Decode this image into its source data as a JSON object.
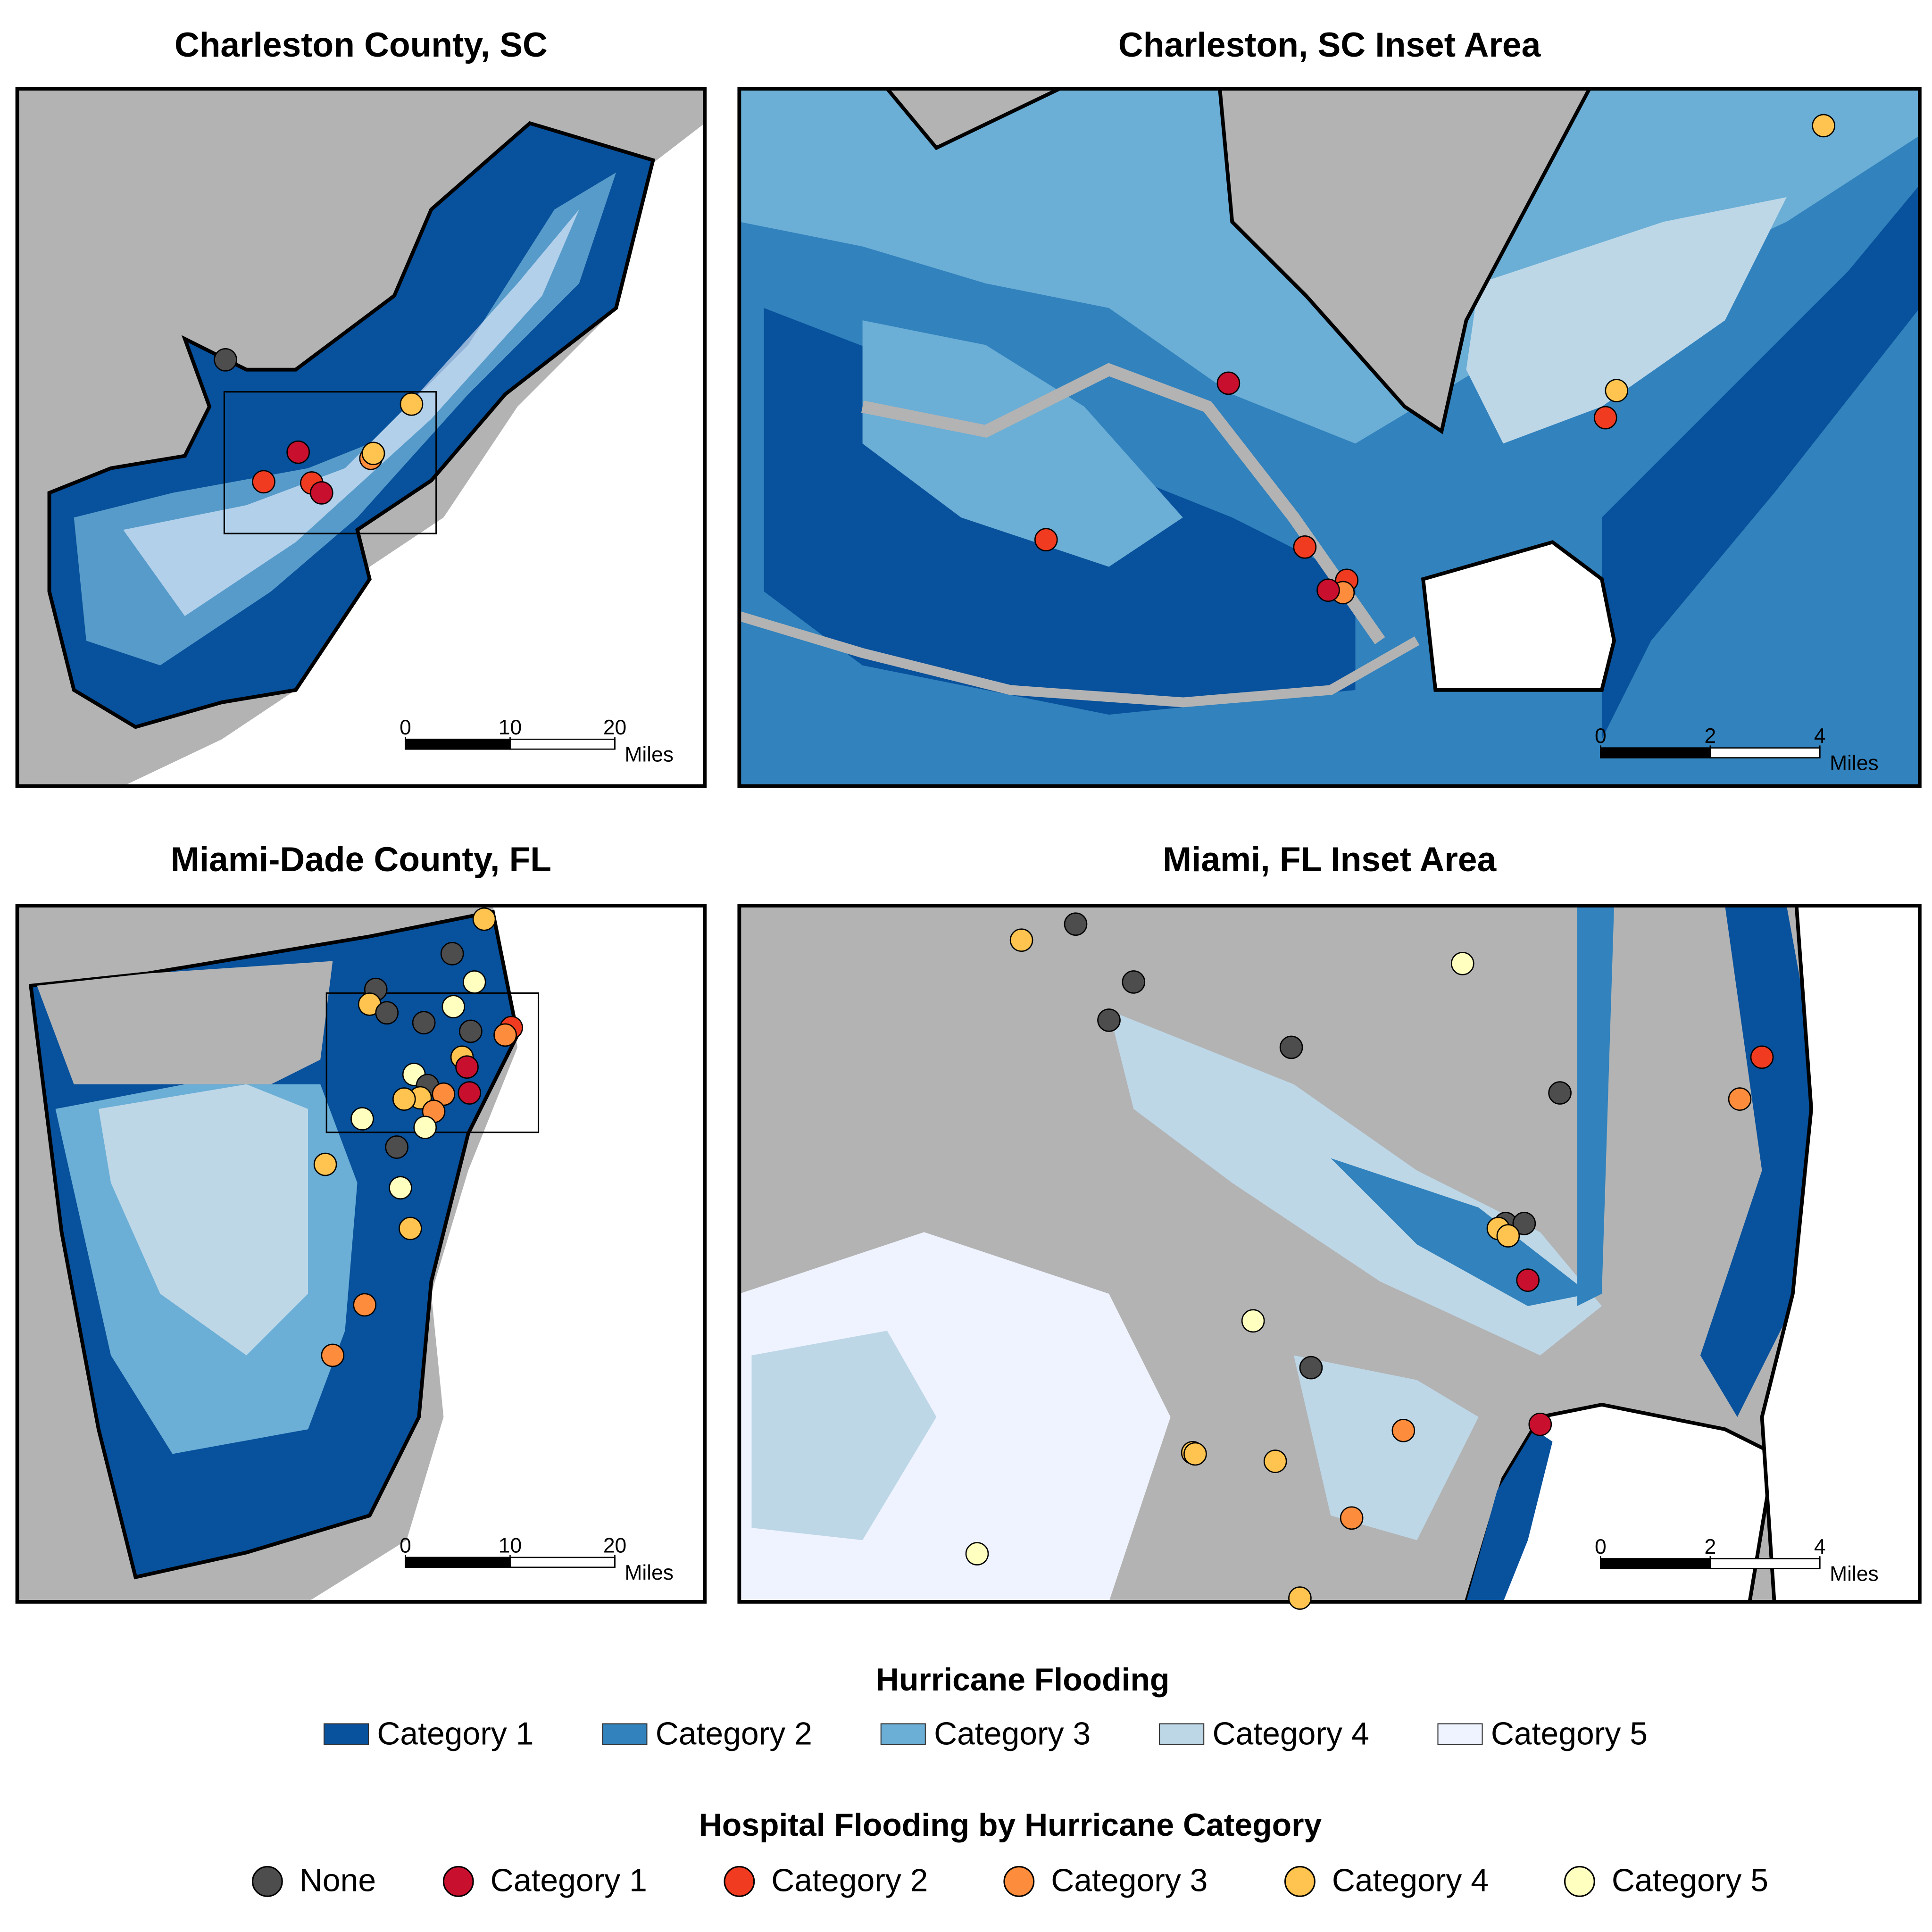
{
  "panels": [
    {
      "title": "Charleston County, SC",
      "scale_bar": {
        "ticks": [
          0,
          10,
          20
        ],
        "unit": "Miles"
      }
    },
    {
      "title": "Charleston, SC Inset Area",
      "scale_bar": {
        "ticks": [
          0,
          2,
          4
        ],
        "unit": "Miles"
      }
    },
    {
      "title": "Miami-Dade County, FL",
      "scale_bar": {
        "ticks": [
          0,
          10,
          20
        ],
        "unit": "Miles"
      }
    },
    {
      "title": "Miami, FL Inset Area",
      "scale_bar": {
        "ticks": [
          0,
          2,
          4
        ],
        "unit": "Miles"
      }
    }
  ],
  "legends": [
    {
      "title": "Hurricane Flooding",
      "items": [
        {
          "label": "Category 1",
          "color": "#08519c"
        },
        {
          "label": "Category 2",
          "color": "#3182bd"
        },
        {
          "label": "Category 3",
          "color": "#6baed6"
        },
        {
          "label": "Category 4",
          "color": "#bdd7e7"
        },
        {
          "label": "Category 5",
          "color": "#eff3ff"
        }
      ]
    },
    {
      "title": "Hospital Flooding by Hurricane Category",
      "items": [
        {
          "label": "None",
          "color": "#4d4d4d"
        },
        {
          "label": "Category 1",
          "color": "#c8102e"
        },
        {
          "label": "Category 2",
          "color": "#f03b20"
        },
        {
          "label": "Category 3",
          "color": "#fd8d3c"
        },
        {
          "label": "Category 4",
          "color": "#fec44f"
        },
        {
          "label": "Category 5",
          "color": "#ffffbf"
        }
      ]
    }
  ]
}
